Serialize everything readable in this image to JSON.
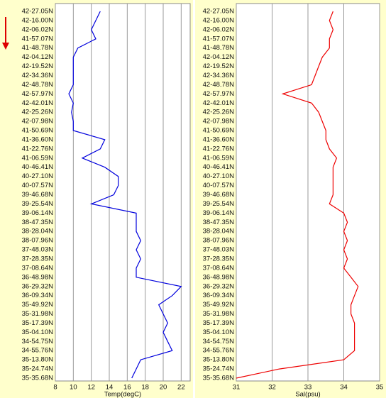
{
  "chart_data": [
    {
      "type": "line",
      "xlabel": "Temp(degC)",
      "color": "#0000dd",
      "grid": true,
      "categories": [
        "42-27.05N",
        "42-16.00N",
        "42-06.02N",
        "41-57.07N",
        "41-48.78N",
        "42-04.12N",
        "42-19.52N",
        "42-34.36N",
        "42-48.78N",
        "42-57.97N",
        "42-42.01N",
        "42-25.26N",
        "42-07.98N",
        "41-50.69N",
        "41-36.60N",
        "41-22.76N",
        "41-06.59N",
        "40-46.41N",
        "40-27.10N",
        "40-07.57N",
        "39-46.68N",
        "39-25.54N",
        "39-06.14N",
        "38-47.35N",
        "38-28.04N",
        "38-07.96N",
        "37-48.03N",
        "37-28.35N",
        "37-08.64N",
        "36-48.98N",
        "36-29.32N",
        "36-09.34N",
        "35-49.92N",
        "35-31.98N",
        "35-17.39N",
        "35-04.10N",
        "34-54.75N",
        "34-55.76N",
        "35-13.80N",
        "35-24.74N",
        "35-35.68N"
      ],
      "values": [
        13,
        12.5,
        12,
        12.5,
        10.5,
        10,
        10,
        10,
        10,
        9.5,
        10,
        9.8,
        10,
        10,
        13.5,
        13,
        11,
        13.5,
        15,
        15,
        14.5,
        12,
        17,
        17,
        17,
        17.5,
        17,
        17.5,
        17,
        17,
        22,
        21,
        19.5,
        20,
        20.5,
        20,
        20.5,
        21,
        17.5,
        17,
        16.5
      ],
      "xlim": [
        8,
        23
      ],
      "xticks": [
        8,
        10,
        12,
        14,
        16,
        18,
        20,
        22
      ]
    },
    {
      "type": "line",
      "xlabel": "Sal(psu)",
      "color": "#ee0000",
      "grid": true,
      "categories": [
        "42-27.05N",
        "42-16.00N",
        "42-06.02N",
        "41-57.07N",
        "41-48.78N",
        "42-04.12N",
        "42-19.52N",
        "42-34.36N",
        "42-48.78N",
        "42-57.97N",
        "42-42.01N",
        "42-25.26N",
        "42-07.98N",
        "41-50.69N",
        "41-36.60N",
        "41-22.76N",
        "41-06.59N",
        "40-46.41N",
        "40-27.10N",
        "40-07.57N",
        "39-46.68N",
        "39-25.54N",
        "39-06.14N",
        "38-47.35N",
        "38-28.04N",
        "38-07.96N",
        "37-48.03N",
        "37-28.35N",
        "37-08.64N",
        "36-48.98N",
        "36-29.32N",
        "36-09.34N",
        "35-49.92N",
        "35-31.98N",
        "35-17.39N",
        "35-04.10N",
        "34-54.75N",
        "34-55.76N",
        "35-13.80N",
        "35-24.74N",
        "35-35.68N"
      ],
      "values": [
        33.7,
        33.6,
        33.7,
        33.6,
        33.6,
        33.4,
        33.3,
        33.2,
        33.1,
        32.3,
        33.1,
        33.3,
        33.4,
        33.5,
        33.5,
        33.6,
        33.8,
        33.7,
        33.7,
        33.7,
        33.7,
        33.6,
        34.0,
        34.1,
        34.0,
        34.1,
        34.0,
        34.1,
        34.0,
        34.2,
        34.4,
        34.3,
        34.2,
        34.2,
        34.3,
        34.3,
        34.3,
        34.3,
        34.0,
        32.2,
        31.0
      ],
      "xlim": [
        31,
        35
      ],
      "xticks": [
        31,
        32,
        33,
        34,
        35
      ]
    }
  ]
}
